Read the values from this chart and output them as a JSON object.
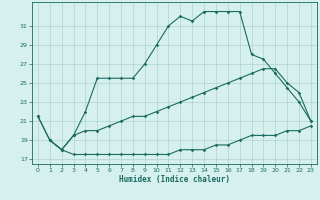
{
  "xlabel": "Humidex (Indice chaleur)",
  "background_color": "#d6f0ee",
  "line_color": "#1a6b60",
  "grid_color": "#aed4cf",
  "xlim": [
    -0.5,
    23.5
  ],
  "ylim": [
    16.5,
    33.5
  ],
  "yticks": [
    17,
    19,
    21,
    23,
    25,
    27,
    29,
    31
  ],
  "xticks": [
    0,
    1,
    2,
    3,
    4,
    5,
    6,
    7,
    8,
    9,
    10,
    11,
    12,
    13,
    14,
    15,
    16,
    17,
    18,
    19,
    20,
    21,
    22,
    23
  ],
  "line1_x": [
    0,
    1,
    2,
    3,
    4,
    5,
    6,
    7,
    8,
    9,
    10,
    11,
    12,
    13,
    14,
    15,
    16,
    17,
    18,
    19,
    20,
    21,
    22,
    23
  ],
  "line1_y": [
    21.5,
    19.0,
    18.0,
    17.5,
    17.5,
    17.5,
    17.5,
    17.5,
    17.5,
    17.5,
    17.5,
    17.5,
    18.0,
    18.0,
    18.0,
    18.5,
    18.5,
    19.0,
    19.5,
    19.5,
    19.5,
    20.0,
    20.0,
    20.5
  ],
  "line2_x": [
    0,
    1,
    2,
    3,
    4,
    5,
    6,
    7,
    8,
    9,
    10,
    11,
    12,
    13,
    14,
    15,
    16,
    17,
    18,
    19,
    20,
    21,
    22,
    23
  ],
  "line2_y": [
    21.5,
    19.0,
    18.0,
    19.5,
    20.0,
    20.0,
    20.5,
    21.0,
    21.5,
    21.5,
    22.0,
    22.5,
    23.0,
    23.5,
    24.0,
    24.5,
    25.0,
    25.5,
    26.0,
    26.5,
    26.5,
    25.0,
    24.0,
    21.0
  ],
  "line3_x": [
    1,
    2,
    3,
    4,
    5,
    6,
    7,
    8,
    9,
    10,
    11,
    12,
    13,
    14,
    15,
    16,
    17,
    18,
    19,
    20,
    21,
    22,
    23
  ],
  "line3_y": [
    19.0,
    18.0,
    19.5,
    22.0,
    25.5,
    25.5,
    25.5,
    25.5,
    27.0,
    29.0,
    31.0,
    32.0,
    31.5,
    32.5,
    32.5,
    32.5,
    32.5,
    28.0,
    27.5,
    26.0,
    24.5,
    23.0,
    21.0
  ]
}
